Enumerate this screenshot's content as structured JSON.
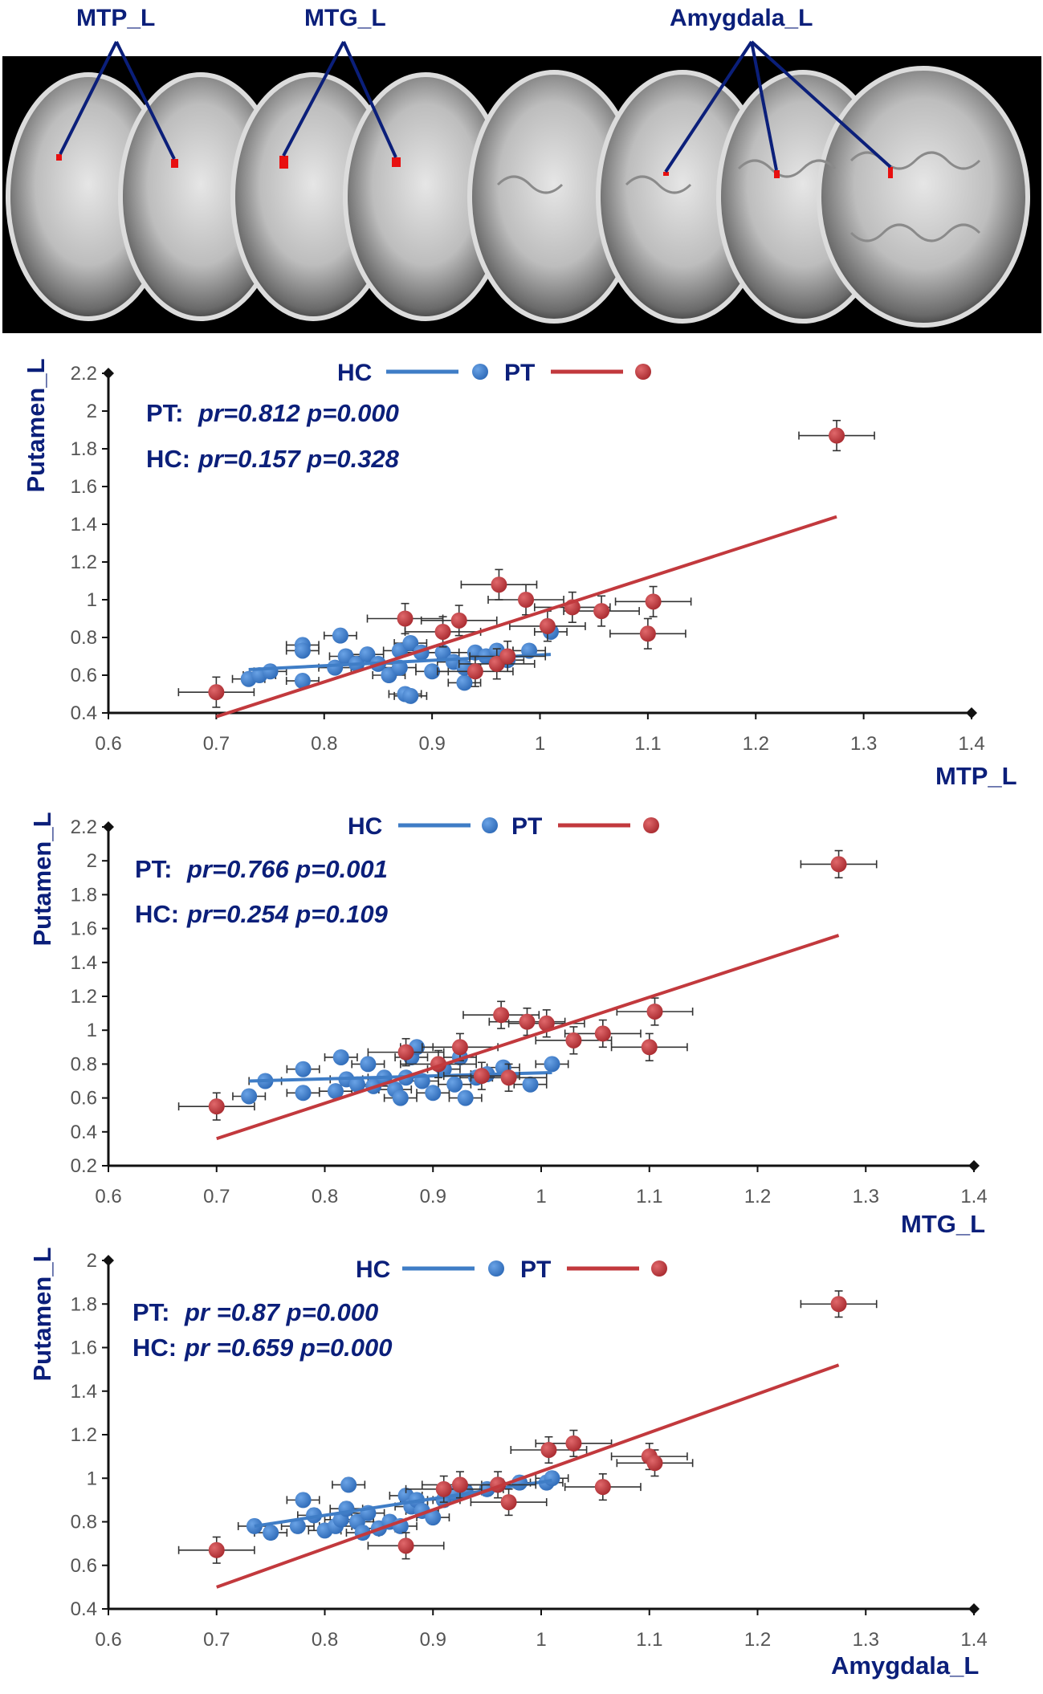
{
  "brain_panel": {
    "roi_labels": [
      "MTP_L",
      "MTG_L",
      "Amygdala_L"
    ]
  },
  "colors": {
    "hc": "#3f7dc6",
    "pt": "#c2393d",
    "text": "#0b1f7a"
  },
  "chart_data": [
    {
      "type": "scatter",
      "xlabel": "MTP_L",
      "ylabel": "Putamen_L",
      "xlim": [
        0.6,
        1.4
      ],
      "ylim": [
        0.4,
        2.2
      ],
      "xticks": [
        0.6,
        0.7,
        0.8,
        0.9,
        1,
        1.1,
        1.2,
        1.3,
        1.4
      ],
      "yticks": [
        0.4,
        0.6,
        0.8,
        1,
        1.2,
        1.4,
        1.6,
        1.8,
        2,
        2.2
      ],
      "legend": [
        "HC",
        "PT"
      ],
      "stats": [
        {
          "group": "PT:",
          "text": "pr=0.812 p=0.000"
        },
        {
          "group": "HC:",
          "text": "pr=0.157 p=0.328"
        }
      ],
      "series": [
        {
          "name": "HC",
          "points": [
            [
              0.73,
              0.58
            ],
            [
              0.74,
              0.6
            ],
            [
              0.75,
              0.62
            ],
            [
              0.78,
              0.76
            ],
            [
              0.78,
              0.73
            ],
            [
              0.78,
              0.57
            ],
            [
              0.81,
              0.64
            ],
            [
              0.815,
              0.81
            ],
            [
              0.82,
              0.7
            ],
            [
              0.83,
              0.66
            ],
            [
              0.84,
              0.71
            ],
            [
              0.85,
              0.66
            ],
            [
              0.86,
              0.6
            ],
            [
              0.87,
              0.64
            ],
            [
              0.87,
              0.73
            ],
            [
              0.875,
              0.5
            ],
            [
              0.88,
              0.49
            ],
            [
              0.88,
              0.77
            ],
            [
              0.89,
              0.72
            ],
            [
              0.9,
              0.62
            ],
            [
              0.91,
              0.72
            ],
            [
              0.92,
              0.67
            ],
            [
              0.93,
              0.56
            ],
            [
              0.93,
              0.64
            ],
            [
              0.94,
              0.72
            ],
            [
              0.95,
              0.7
            ],
            [
              0.96,
              0.73
            ],
            [
              0.97,
              0.68
            ],
            [
              0.99,
              0.73
            ],
            [
              1.01,
              0.83
            ]
          ],
          "xerr": 0.015,
          "yerr": 0.03,
          "fit": [
            [
              0.73,
              0.63
            ],
            [
              1.01,
              0.71
            ]
          ]
        },
        {
          "name": "PT",
          "points": [
            [
              0.7,
              0.51
            ],
            [
              0.875,
              0.9
            ],
            [
              0.91,
              0.83
            ],
            [
              0.925,
              0.89
            ],
            [
              0.94,
              0.62
            ],
            [
              0.96,
              0.66
            ],
            [
              0.962,
              1.08
            ],
            [
              0.97,
              0.7
            ],
            [
              0.987,
              1.0
            ],
            [
              1.007,
              0.86
            ],
            [
              1.03,
              0.96
            ],
            [
              1.057,
              0.94
            ],
            [
              1.1,
              0.82
            ],
            [
              1.105,
              0.99
            ],
            [
              1.275,
              1.87
            ]
          ],
          "xerr": 0.035,
          "yerr": 0.08,
          "fit": [
            [
              0.7,
              0.38
            ],
            [
              1.275,
              1.44
            ]
          ]
        }
      ]
    },
    {
      "type": "scatter",
      "xlabel": "MTG_L",
      "ylabel": "Putamen_L",
      "xlim": [
        0.6,
        1.4
      ],
      "ylim": [
        0.2,
        2.2
      ],
      "xticks": [
        0.6,
        0.7,
        0.8,
        0.9,
        1,
        1.1,
        1.2,
        1.3,
        1.4
      ],
      "yticks": [
        0.2,
        0.4,
        0.6,
        0.8,
        1,
        1.2,
        1.4,
        1.6,
        1.8,
        2,
        2.2
      ],
      "legend": [
        "HC",
        "PT"
      ],
      "stats": [
        {
          "group": "PT:",
          "text": "pr=0.766 p=0.001"
        },
        {
          "group": "HC:",
          "text": "pr=0.254 p=0.109"
        }
      ],
      "series": [
        {
          "name": "HC",
          "points": [
            [
              0.73,
              0.61
            ],
            [
              0.745,
              0.7
            ],
            [
              0.78,
              0.77
            ],
            [
              0.78,
              0.63
            ],
            [
              0.81,
              0.64
            ],
            [
              0.815,
              0.84
            ],
            [
              0.82,
              0.71
            ],
            [
              0.83,
              0.68
            ],
            [
              0.84,
              0.8
            ],
            [
              0.845,
              0.67
            ],
            [
              0.855,
              0.72
            ],
            [
              0.865,
              0.65
            ],
            [
              0.87,
              0.6
            ],
            [
              0.875,
              0.72
            ],
            [
              0.88,
              0.84
            ],
            [
              0.885,
              0.9
            ],
            [
              0.89,
              0.7
            ],
            [
              0.9,
              0.63
            ],
            [
              0.91,
              0.77
            ],
            [
              0.92,
              0.68
            ],
            [
              0.925,
              0.84
            ],
            [
              0.93,
              0.6
            ],
            [
              0.94,
              0.72
            ],
            [
              0.95,
              0.74
            ],
            [
              0.965,
              0.78
            ],
            [
              0.99,
              0.68
            ],
            [
              1.01,
              0.8
            ]
          ],
          "xerr": 0.015,
          "yerr": 0.03,
          "fit": [
            [
              0.73,
              0.7
            ],
            [
              1.01,
              0.75
            ]
          ]
        },
        {
          "name": "PT",
          "points": [
            [
              0.7,
              0.55
            ],
            [
              0.875,
              0.87
            ],
            [
              0.905,
              0.8
            ],
            [
              0.925,
              0.9
            ],
            [
              0.945,
              0.73
            ],
            [
              0.963,
              1.09
            ],
            [
              0.97,
              0.72
            ],
            [
              0.987,
              1.05
            ],
            [
              1.005,
              1.04
            ],
            [
              1.03,
              0.94
            ],
            [
              1.057,
              0.98
            ],
            [
              1.1,
              0.9
            ],
            [
              1.105,
              1.11
            ],
            [
              1.275,
              1.98
            ]
          ],
          "xerr": 0.035,
          "yerr": 0.08,
          "fit": [
            [
              0.7,
              0.36
            ],
            [
              1.275,
              1.56
            ]
          ]
        }
      ]
    },
    {
      "type": "scatter",
      "xlabel": "Amygdala_L",
      "ylabel": "Putamen_L",
      "xlim": [
        0.6,
        1.4
      ],
      "ylim": [
        0.4,
        2.0
      ],
      "xticks": [
        0.6,
        0.7,
        0.8,
        0.9,
        1,
        1.1,
        1.2,
        1.3,
        1.4
      ],
      "yticks": [
        0.4,
        0.6,
        0.8,
        1,
        1.2,
        1.4,
        1.6,
        1.8,
        2
      ],
      "legend": [
        "HC",
        "PT"
      ],
      "stats": [
        {
          "group": "PT:",
          "text": "pr =0.87 p=0.000"
        },
        {
          "group": "HC:",
          "text": "pr =0.659 p=0.000"
        }
      ],
      "series": [
        {
          "name": "HC",
          "points": [
            [
              0.735,
              0.78
            ],
            [
              0.75,
              0.75
            ],
            [
              0.775,
              0.78
            ],
            [
              0.78,
              0.9
            ],
            [
              0.79,
              0.83
            ],
            [
              0.8,
              0.76
            ],
            [
              0.81,
              0.78
            ],
            [
              0.815,
              0.81
            ],
            [
              0.82,
              0.86
            ],
            [
              0.822,
              0.97
            ],
            [
              0.83,
              0.8
            ],
            [
              0.835,
              0.75
            ],
            [
              0.84,
              0.84
            ],
            [
              0.85,
              0.77
            ],
            [
              0.86,
              0.8
            ],
            [
              0.87,
              0.78
            ],
            [
              0.875,
              0.92
            ],
            [
              0.88,
              0.87
            ],
            [
              0.885,
              0.9
            ],
            [
              0.89,
              0.85
            ],
            [
              0.9,
              0.82
            ],
            [
              0.91,
              0.9
            ],
            [
              0.92,
              0.93
            ],
            [
              0.93,
              0.94
            ],
            [
              0.95,
              0.95
            ],
            [
              0.96,
              0.97
            ],
            [
              0.98,
              0.98
            ],
            [
              1.005,
              0.98
            ],
            [
              1.01,
              1.0
            ]
          ],
          "xerr": 0.015,
          "yerr": 0.03,
          "fit": [
            [
              0.735,
              0.78
            ],
            [
              1.01,
              0.99
            ]
          ]
        },
        {
          "name": "PT",
          "points": [
            [
              0.7,
              0.67
            ],
            [
              0.875,
              0.69
            ],
            [
              0.91,
              0.95
            ],
            [
              0.925,
              0.97
            ],
            [
              0.96,
              0.97
            ],
            [
              0.97,
              0.89
            ],
            [
              1.007,
              1.13
            ],
            [
              1.03,
              1.16
            ],
            [
              1.057,
              0.96
            ],
            [
              1.1,
              1.1
            ],
            [
              1.105,
              1.07
            ],
            [
              1.275,
              1.8
            ]
          ],
          "xerr": 0.035,
          "yerr": 0.06,
          "fit": [
            [
              0.7,
              0.5
            ],
            [
              1.275,
              1.52
            ]
          ]
        }
      ]
    }
  ]
}
